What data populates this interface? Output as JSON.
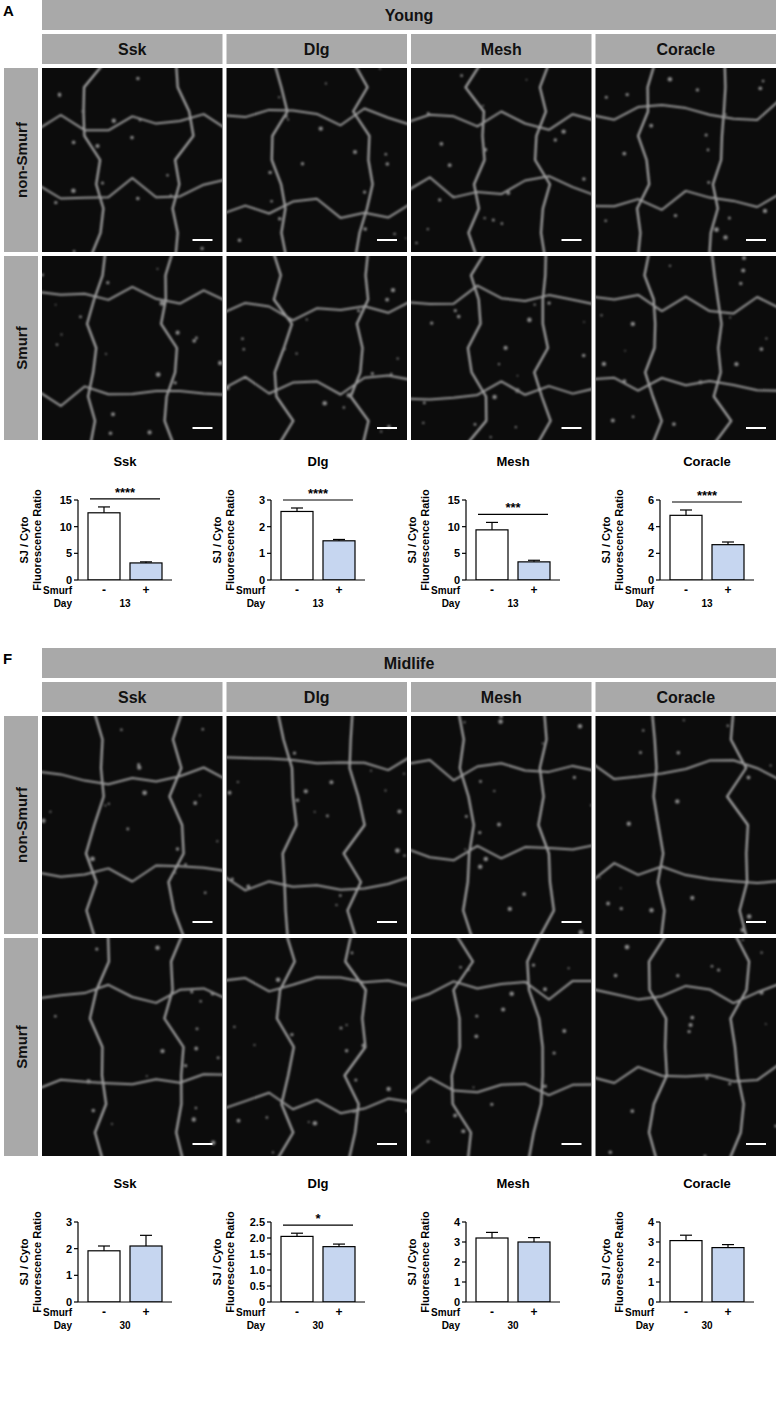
{
  "image_panels": [
    {
      "label": "A",
      "title": "Young",
      "columns": [
        "Ssk",
        "Dlg",
        "Mesh",
        "Coracle"
      ],
      "rows": [
        "non-Smurf",
        "Smurf"
      ]
    },
    {
      "label": "F",
      "title": "Midlife",
      "columns": [
        "Ssk",
        "Dlg",
        "Mesh",
        "Coracle"
      ],
      "rows": [
        "non-Smurf",
        "Smurf"
      ]
    }
  ],
  "chart_data": [
    {
      "type": "bar",
      "title": "Ssk",
      "y_label": [
        "SJ / Cyto",
        "Fluorescence Ratio"
      ],
      "x_label": "Smurf",
      "categories": [
        "-",
        "+"
      ],
      "group_label": "Day",
      "group": "13",
      "values": [
        12.6,
        3.2
      ],
      "errors": [
        1.1,
        0.2
      ],
      "colors": [
        "#ffffff",
        "#c6d6f0"
      ],
      "ylim": [
        0,
        15
      ],
      "yticks": [
        0,
        5,
        10,
        15
      ],
      "significance": "****"
    },
    {
      "type": "bar",
      "title": "Dlg",
      "y_label": [
        "SJ / Cyto",
        "Fluorescence Ratio"
      ],
      "x_label": "Smurf",
      "categories": [
        "-",
        "+"
      ],
      "group_label": "Day",
      "group": "13",
      "values": [
        2.57,
        1.47
      ],
      "errors": [
        0.13,
        0.05
      ],
      "colors": [
        "#ffffff",
        "#c6d6f0"
      ],
      "ylim": [
        0,
        3
      ],
      "yticks": [
        0,
        1,
        2,
        3
      ],
      "significance": "****"
    },
    {
      "type": "bar",
      "title": "Mesh",
      "y_label": [
        "SJ / Cyto",
        "Fluorescence Ratio"
      ],
      "x_label": "Smurf",
      "categories": [
        "-",
        "+"
      ],
      "group_label": "Day",
      "group": "13",
      "values": [
        9.4,
        3.4
      ],
      "errors": [
        1.4,
        0.3
      ],
      "colors": [
        "#ffffff",
        "#c6d6f0"
      ],
      "ylim": [
        0,
        15
      ],
      "yticks": [
        0,
        5,
        10,
        15
      ],
      "significance": "***"
    },
    {
      "type": "bar",
      "title": "Coracle",
      "y_label": [
        "SJ / Cyto",
        "Fluorescence Ratio"
      ],
      "x_label": "Smurf",
      "categories": [
        "-",
        "+"
      ],
      "group_label": "Day",
      "group": "13",
      "values": [
        4.85,
        2.65
      ],
      "errors": [
        0.4,
        0.2
      ],
      "colors": [
        "#ffffff",
        "#c6d6f0"
      ],
      "ylim": [
        0,
        6
      ],
      "yticks": [
        0,
        2,
        4,
        6
      ],
      "significance": "****"
    },
    {
      "type": "bar",
      "title": "Ssk",
      "y_label": [
        "SJ / Cyto",
        "Fluorescence Ratio"
      ],
      "x_label": "Smurf",
      "categories": [
        "-",
        "+"
      ],
      "group_label": "Day",
      "group": "30",
      "values": [
        1.92,
        2.1
      ],
      "errors": [
        0.18,
        0.4
      ],
      "colors": [
        "#ffffff",
        "#c6d6f0"
      ],
      "ylim": [
        0,
        3
      ],
      "yticks": [
        0,
        1,
        2,
        3
      ]
    },
    {
      "type": "bar",
      "title": "Dlg",
      "y_label": [
        "SJ / Cyto",
        "Fluorescence Ratio"
      ],
      "x_label": "Smurf",
      "categories": [
        "-",
        "+"
      ],
      "group_label": "Day",
      "group": "30",
      "values": [
        2.05,
        1.73
      ],
      "errors": [
        0.1,
        0.08
      ],
      "colors": [
        "#ffffff",
        "#c6d6f0"
      ],
      "ylim": [
        0,
        2.5
      ],
      "yticks": [
        0,
        0.5,
        {
          "value": 1,
          "label": "1.0"
        },
        1.5,
        {
          "value": 2,
          "label": "2.0"
        },
        2.5
      ],
      "significance": "*"
    },
    {
      "type": "bar",
      "title": "Mesh",
      "y_label": [
        "SJ / Cyto",
        "Fluorescence Ratio"
      ],
      "x_label": "Smurf",
      "categories": [
        "-",
        "+"
      ],
      "group_label": "Day",
      "group": "30",
      "values": [
        3.2,
        3.0
      ],
      "errors": [
        0.28,
        0.22
      ],
      "colors": [
        "#ffffff",
        "#c6d6f0"
      ],
      "ylim": [
        0,
        4
      ],
      "yticks": [
        0,
        1,
        2,
        3,
        4
      ]
    },
    {
      "type": "bar",
      "title": "Coracle",
      "y_label": [
        "SJ / Cyto",
        "Fluorescence Ratio"
      ],
      "x_label": "Smurf",
      "categories": [
        "-",
        "+"
      ],
      "group_label": "Day",
      "group": "30",
      "values": [
        3.07,
        2.72
      ],
      "errors": [
        0.27,
        0.15
      ],
      "colors": [
        "#ffffff",
        "#c6d6f0"
      ],
      "ylim": [
        0,
        4
      ],
      "yticks": [
        0,
        1,
        2,
        3,
        4
      ]
    }
  ]
}
